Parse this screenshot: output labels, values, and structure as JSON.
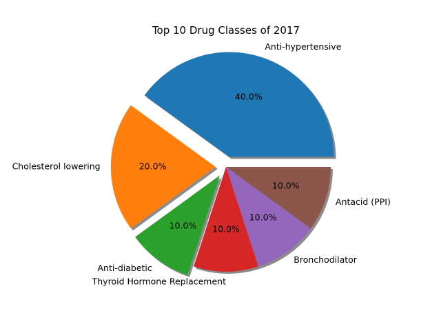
{
  "chart_data": {
    "type": "pie",
    "title": "Top 10 Drug Classes of 2017",
    "slices": [
      {
        "label": "Anti-hypertensive",
        "value": 40.0,
        "pct_label": "40.0%",
        "color": "#1f77b4",
        "exploded": true
      },
      {
        "label": "Cholesterol lowering",
        "value": 20.0,
        "pct_label": "20.0%",
        "color": "#ff7f0e",
        "exploded": true
      },
      {
        "label": "Anti-diabetic",
        "value": 10.0,
        "pct_label": "10.0%",
        "color": "#2ca02c",
        "exploded": true
      },
      {
        "label": "Thyroid Hormone Replacement",
        "value": 10.0,
        "pct_label": "10.0%",
        "color": "#d62728",
        "exploded": false
      },
      {
        "label": "Bronchodilator",
        "value": 10.0,
        "pct_label": "10.0%",
        "color": "#9467bd",
        "exploded": false
      },
      {
        "label": "Antacid (PPI)",
        "value": 10.0,
        "pct_label": "10.0%",
        "color": "#8c564b",
        "exploded": false
      }
    ],
    "shadow": true
  }
}
